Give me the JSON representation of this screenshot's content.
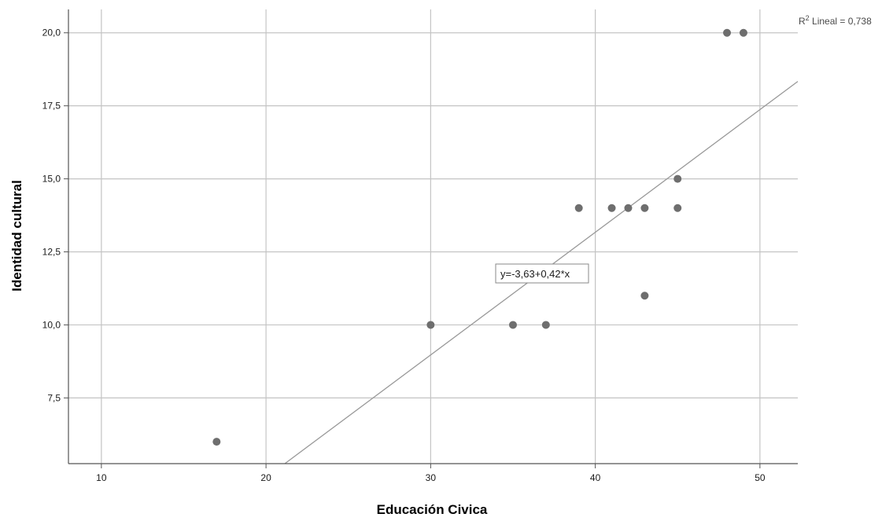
{
  "chart_data": {
    "type": "scatter",
    "xlabel": "Educación Civica",
    "ylabel": "Identidad cultural",
    "xlim": [
      8,
      52.3
    ],
    "ylim": [
      5.25,
      20.8
    ],
    "x_ticks": [
      10,
      20,
      30,
      40,
      50
    ],
    "x_tick_labels": [
      "10",
      "20",
      "30",
      "40",
      "50"
    ],
    "y_ticks": [
      7.5,
      10,
      12.5,
      15,
      17.5,
      20
    ],
    "y_tick_labels": [
      "7,5",
      "10,0",
      "12,5",
      "15,0",
      "17,5",
      "20,0"
    ],
    "grid": true,
    "points": [
      {
        "x": 17,
        "y": 6
      },
      {
        "x": 30,
        "y": 10
      },
      {
        "x": 35,
        "y": 10
      },
      {
        "x": 37,
        "y": 10
      },
      {
        "x": 39,
        "y": 14
      },
      {
        "x": 41,
        "y": 14
      },
      {
        "x": 42,
        "y": 14
      },
      {
        "x": 43,
        "y": 14
      },
      {
        "x": 43,
        "y": 11
      },
      {
        "x": 45,
        "y": 15
      },
      {
        "x": 45,
        "y": 14
      },
      {
        "x": 48,
        "y": 20
      },
      {
        "x": 49,
        "y": 20
      }
    ],
    "fit_line": {
      "intercept": -3.63,
      "slope": 0.42,
      "equation_label": "y=-3,63+0,42*x"
    },
    "r2_label": {
      "prefix": "R",
      "superscript": "2",
      "text": " Lineal = 0,738"
    },
    "colors": {
      "points": "#6e6e6e",
      "grid": "#c4c4c4",
      "fit_line": "#999999",
      "axis": "#555555"
    }
  }
}
